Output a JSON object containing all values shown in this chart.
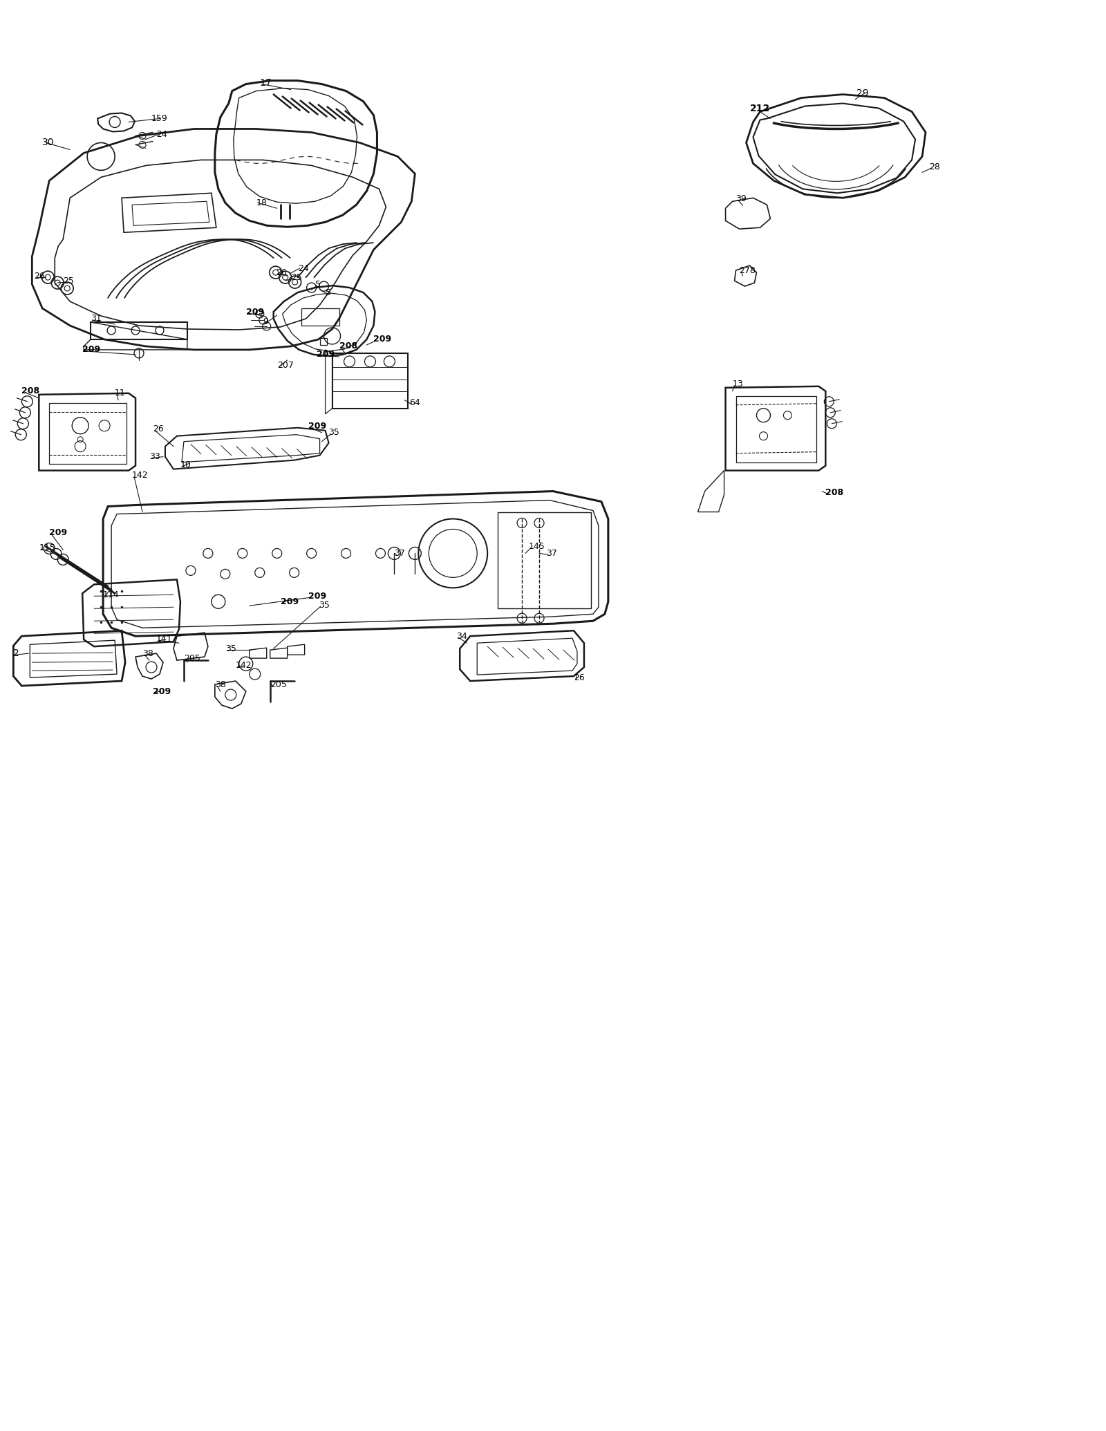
{
  "background_color": "#f5f0e8",
  "line_color": "#1a1a1a",
  "text_color": "#000000",
  "fig_width": 16.0,
  "fig_height": 20.7,
  "dpi": 100
}
